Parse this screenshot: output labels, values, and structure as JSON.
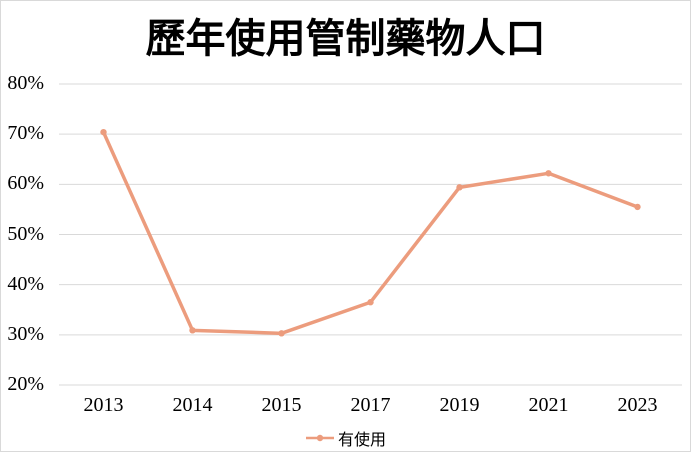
{
  "chart": {
    "frame_border_color": "#D9D9D9",
    "background_color": "#FFFFFF"
  },
  "chart_data": {
    "type": "line",
    "title": "歷年使用管制藥物人口",
    "categories": [
      "2013",
      "2014",
      "2015",
      "2017",
      "2019",
      "2021",
      "2023"
    ],
    "series": [
      {
        "name": "有使用",
        "values": [
          70.4,
          30.9,
          30.3,
          36.5,
          59.4,
          62.2,
          55.5
        ]
      }
    ],
    "xlabel": "",
    "ylabel": "",
    "ylim": [
      20,
      80
    ],
    "y_ticks": [
      80,
      70,
      60,
      50,
      40,
      30,
      20
    ],
    "y_tick_labels": [
      "80%",
      "70%",
      "60%",
      "50%",
      "40%",
      "30%",
      "20%"
    ],
    "grid": true,
    "marker": "circle",
    "legend_position": "bottom-center",
    "colors": {
      "line": "#EC9C7D",
      "gridline": "#D9D9D9",
      "text": "#000000"
    }
  }
}
